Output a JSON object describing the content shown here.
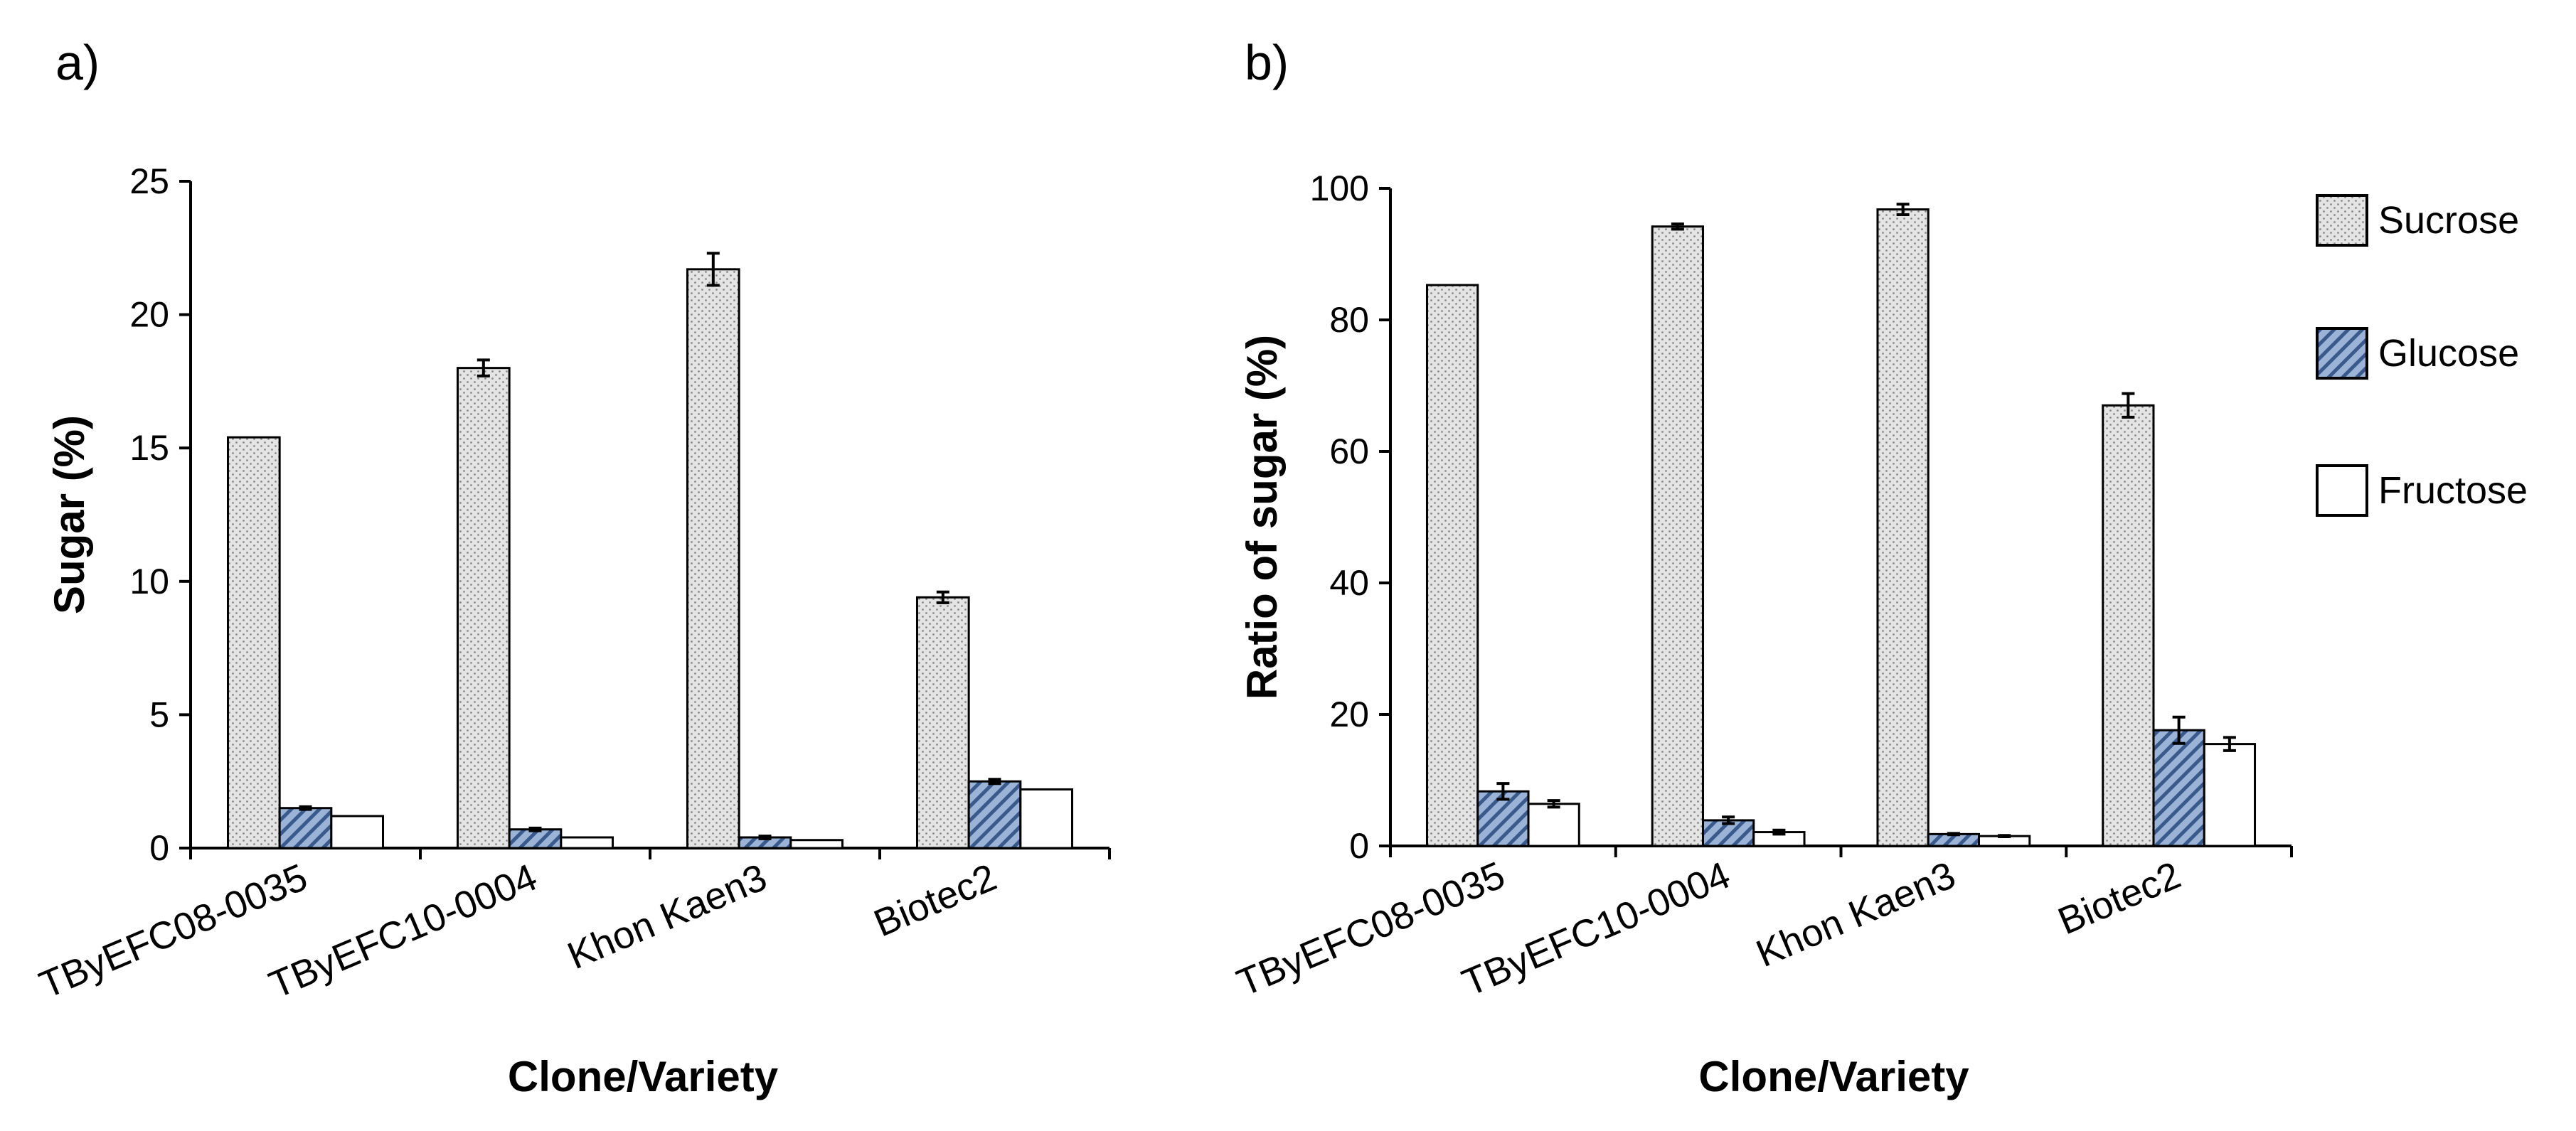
{
  "chart_data": [
    {
      "type": "bar",
      "panel_label": "a)",
      "title": "",
      "xlabel": "Clone/Variety",
      "ylabel": "Sugar (%)",
      "ylim": [
        0,
        25
      ],
      "yticks": [
        0,
        5,
        10,
        15,
        20,
        25
      ],
      "categories": [
        "TByEFC08-0035",
        "TByEFC10-0004",
        "Khon Kaen3",
        "Biotec2"
      ],
      "series": [
        {
          "name": "Sucrose",
          "values": [
            15.4,
            18.0,
            21.7,
            9.4
          ],
          "errors": [
            0.0,
            0.3,
            0.6,
            0.2
          ]
        },
        {
          "name": "Glucose",
          "values": [
            1.5,
            0.7,
            0.4,
            2.5
          ],
          "errors": [
            0.05,
            0.05,
            0.05,
            0.08
          ]
        },
        {
          "name": "Fructose",
          "values": [
            1.2,
            0.4,
            0.3,
            2.2
          ],
          "errors": [
            0.0,
            0.0,
            0.0,
            0.0
          ]
        }
      ]
    },
    {
      "type": "bar",
      "panel_label": "b)",
      "title": "",
      "xlabel": "Clone/Variety",
      "ylabel": "Ratio of sugar (%)",
      "ylim": [
        0,
        100
      ],
      "yticks": [
        0,
        20,
        40,
        60,
        80,
        100
      ],
      "categories": [
        "TByEFC08-0035",
        "TByEFC10-0004",
        "Khon Kaen3",
        "Biotec2"
      ],
      "series": [
        {
          "name": "Sucrose",
          "values": [
            85.3,
            94.2,
            96.8,
            67.0
          ],
          "errors": [
            0.0,
            0.4,
            0.8,
            1.8
          ]
        },
        {
          "name": "Glucose",
          "values": [
            8.3,
            3.9,
            1.8,
            17.6
          ],
          "errors": [
            1.2,
            0.5,
            0.1,
            2.0
          ]
        },
        {
          "name": "Fructose",
          "values": [
            6.4,
            2.1,
            1.5,
            15.5
          ],
          "errors": [
            0.5,
            0.3,
            0.1,
            1.0
          ]
        }
      ]
    }
  ],
  "legend": {
    "items": [
      {
        "name": "Sucrose",
        "style": "dotted"
      },
      {
        "name": "Glucose",
        "style": "hatched"
      },
      {
        "name": "Fructose",
        "style": "white"
      }
    ]
  },
  "colors": {
    "sucrose_fill": "#e4e4e4",
    "sucrose_dot": "#8a8a8a",
    "glucose_fill": "#9bb3d6",
    "glucose_hatch": "#3a5a8c",
    "fructose_fill": "#ffffff",
    "stroke": "#000000"
  }
}
